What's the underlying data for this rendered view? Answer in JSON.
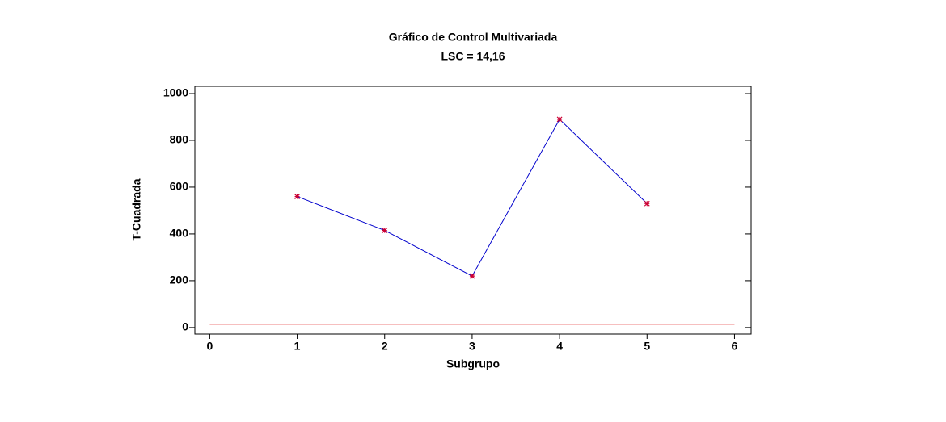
{
  "chart_data": {
    "type": "line",
    "title": "Gráfico de Control Multivariada",
    "subtitle": "LSC = 14,16",
    "xlabel": "Subgrupo",
    "ylabel": "T-Cuadrada",
    "x": [
      1,
      2,
      3,
      4,
      5
    ],
    "values": [
      560,
      415,
      220,
      890,
      530
    ],
    "color": "#0000cc",
    "marker_color": "#cc0033",
    "ucl": 14.16,
    "ucl_color": "#dd0000",
    "xlim": [
      -0.17,
      6.19
    ],
    "xticks": [
      0,
      1,
      2,
      3,
      4,
      5,
      6
    ],
    "ylim": [
      -28,
      1031
    ],
    "yticks": [
      0,
      200,
      400,
      600,
      800,
      1000
    ]
  }
}
